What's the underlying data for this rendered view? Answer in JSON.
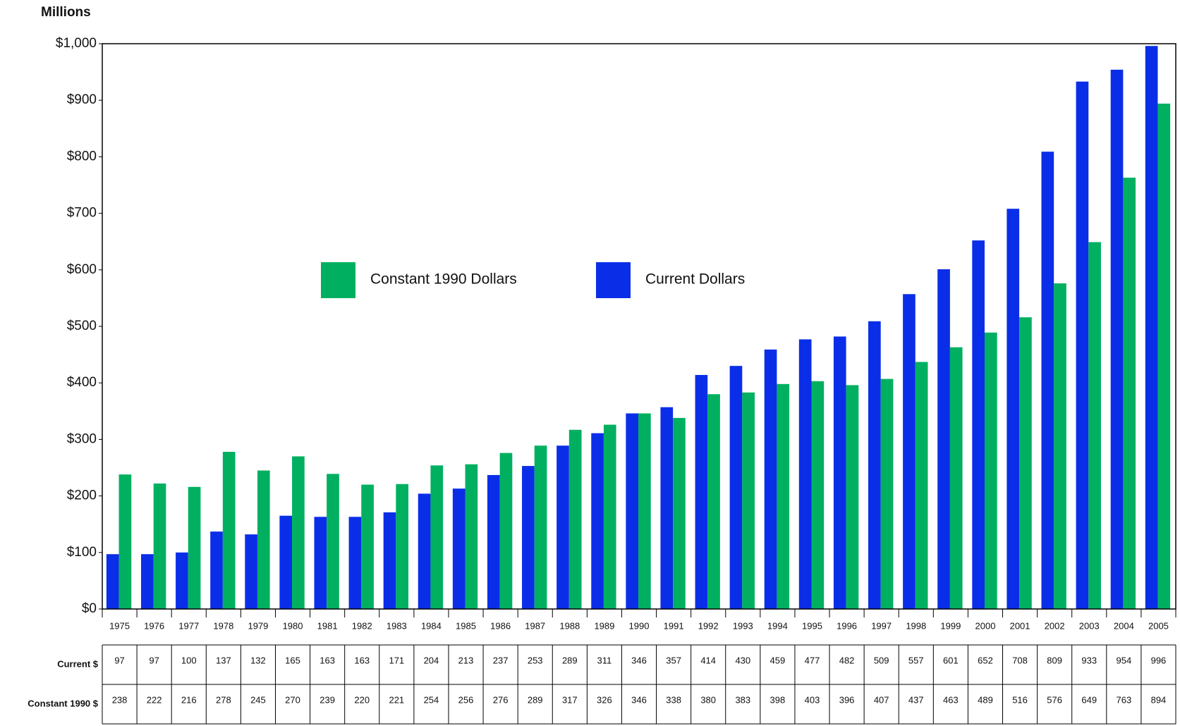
{
  "chart_data": {
    "type": "bar",
    "y_label": "Millions",
    "categories": [
      "1975",
      "1976",
      "1977",
      "1978",
      "1979",
      "1980",
      "1981",
      "1982",
      "1983",
      "1984",
      "1985",
      "1986",
      "1987",
      "1988",
      "1989",
      "1990",
      "1991",
      "1992",
      "1993",
      "1994",
      "1995",
      "1996",
      "1997",
      "1998",
      "1999",
      "2000",
      "2001",
      "2002",
      "2003",
      "2004",
      "2005"
    ],
    "series": [
      {
        "name": "Current Dollars",
        "table_label": "Current $",
        "color": "#0a2ee8",
        "values": [
          97,
          97,
          100,
          137,
          132,
          165,
          163,
          163,
          171,
          204,
          213,
          237,
          253,
          289,
          311,
          346,
          357,
          414,
          430,
          459,
          477,
          482,
          509,
          557,
          601,
          652,
          708,
          809,
          933,
          954,
          996
        ]
      },
      {
        "name": "Constant 1990 Dollars",
        "table_label": "Constant 1990 $",
        "color": "#00b060",
        "values": [
          238,
          222,
          216,
          278,
          245,
          270,
          239,
          220,
          221,
          254,
          256,
          276,
          289,
          317,
          326,
          346,
          338,
          380,
          383,
          398,
          403,
          396,
          407,
          437,
          463,
          489,
          516,
          576,
          649,
          763,
          894
        ]
      }
    ],
    "ylim": [
      0,
      1000
    ],
    "yticks": [
      {
        "value": 0,
        "label": "$0"
      },
      {
        "value": 100,
        "label": "$100"
      },
      {
        "value": 200,
        "label": "$200"
      },
      {
        "value": 300,
        "label": "$300"
      },
      {
        "value": 400,
        "label": "$400"
      },
      {
        "value": 500,
        "label": "$500"
      },
      {
        "value": 600,
        "label": "$600"
      },
      {
        "value": 700,
        "label": "$700"
      },
      {
        "value": 800,
        "label": "$800"
      },
      {
        "value": 900,
        "label": "$900"
      },
      {
        "value": 1000,
        "label": "$1,000"
      }
    ]
  }
}
